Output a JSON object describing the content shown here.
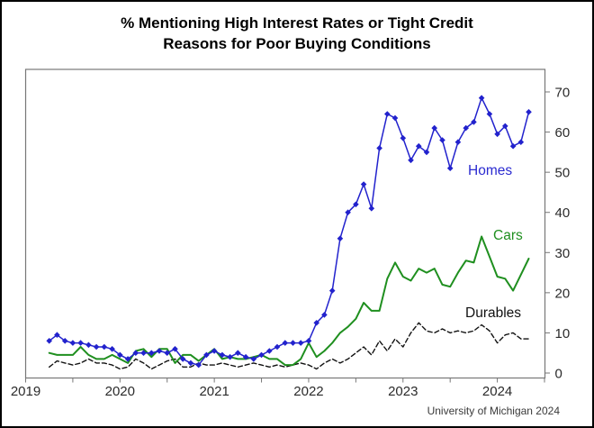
{
  "title": {
    "line1": "% Mentioning High Interest Rates or Tight Credit",
    "line2": "Reasons for Poor Buying Conditions"
  },
  "attribution": "University of Michigan 2024",
  "chart_data": {
    "type": "line",
    "title": "% Mentioning High Interest Rates or Tight Credit Reasons for Poor Buying Conditions",
    "x_unit": "month",
    "x_start": "2019-04",
    "x_end": "2024-05",
    "x_axis": {
      "range_start": "2019-01",
      "range_end": "2024-07",
      "tick_years": [
        "2019",
        "2020",
        "2021",
        "2022",
        "2023",
        "2024"
      ],
      "minor_tick_interval": "half-year"
    },
    "y_axis": {
      "side": "right",
      "min": 0,
      "max": 70,
      "ticks": [
        0,
        10,
        20,
        30,
        40,
        50,
        60,
        70
      ]
    },
    "grid": false,
    "legend_position": "inline-labels",
    "series": [
      {
        "name": "Homes",
        "color": "#2222cd",
        "line_style": "solid",
        "marker": "diamond",
        "values": [
          8,
          9.5,
          8,
          7.5,
          7.5,
          7,
          6.5,
          6.5,
          6,
          4.5,
          3.5,
          5,
          5,
          5,
          5.5,
          5,
          6,
          3.5,
          2.5,
          2,
          4.5,
          5.5,
          4.5,
          4,
          5,
          4,
          3.5,
          4.5,
          5.5,
          6.5,
          7.5,
          7.5,
          7.5,
          8,
          12.5,
          14.5,
          20.5,
          33.5,
          40,
          42,
          47,
          41,
          56,
          64.5,
          63.5,
          58.5,
          53,
          56.5,
          55,
          61,
          58,
          51,
          57.5,
          61,
          62.5,
          68.5,
          64.5,
          59.5,
          61.5,
          56.5,
          57.5,
          65
        ]
      },
      {
        "name": "Cars",
        "color": "#1f8f1f",
        "line_style": "solid",
        "marker": "none",
        "values": [
          5,
          4.5,
          4.5,
          4.5,
          6.5,
          4.5,
          3.5,
          3.5,
          4.5,
          3.5,
          2.5,
          5.5,
          6,
          4,
          6,
          6,
          2.5,
          4.5,
          4.5,
          3,
          4.5,
          6,
          3.5,
          4,
          3.5,
          3.5,
          4,
          4.5,
          3.5,
          3.5,
          2,
          2,
          3.5,
          7.5,
          4,
          5.5,
          7.5,
          10,
          11.5,
          13.5,
          17.5,
          15.5,
          15.5,
          23.5,
          27.5,
          24,
          23,
          26,
          25,
          26,
          22,
          21.5,
          25,
          28,
          27.5,
          34,
          29,
          24,
          23.5,
          20.5,
          24.5,
          28.5
        ]
      },
      {
        "name": "Durables",
        "color": "#111111",
        "line_style": "dashed",
        "marker": "none",
        "values": [
          1.5,
          3,
          2.5,
          2,
          2.5,
          3.5,
          2.5,
          2.5,
          2,
          1,
          1.5,
          3.5,
          2.5,
          1,
          2,
          3,
          3.5,
          1.5,
          1.5,
          2.5,
          2,
          2,
          2.5,
          2,
          1.5,
          2,
          2.5,
          2,
          1.5,
          2,
          1.5,
          2,
          2.5,
          2,
          1,
          2.5,
          3.5,
          2.5,
          3.5,
          5,
          6.5,
          4.5,
          8,
          5.5,
          8.5,
          6.5,
          10,
          12.5,
          10.5,
          10,
          11,
          10,
          10.5,
          10,
          10.5,
          12,
          10.5,
          7.5,
          9.5,
          10,
          8.5,
          8.5
        ]
      }
    ]
  }
}
